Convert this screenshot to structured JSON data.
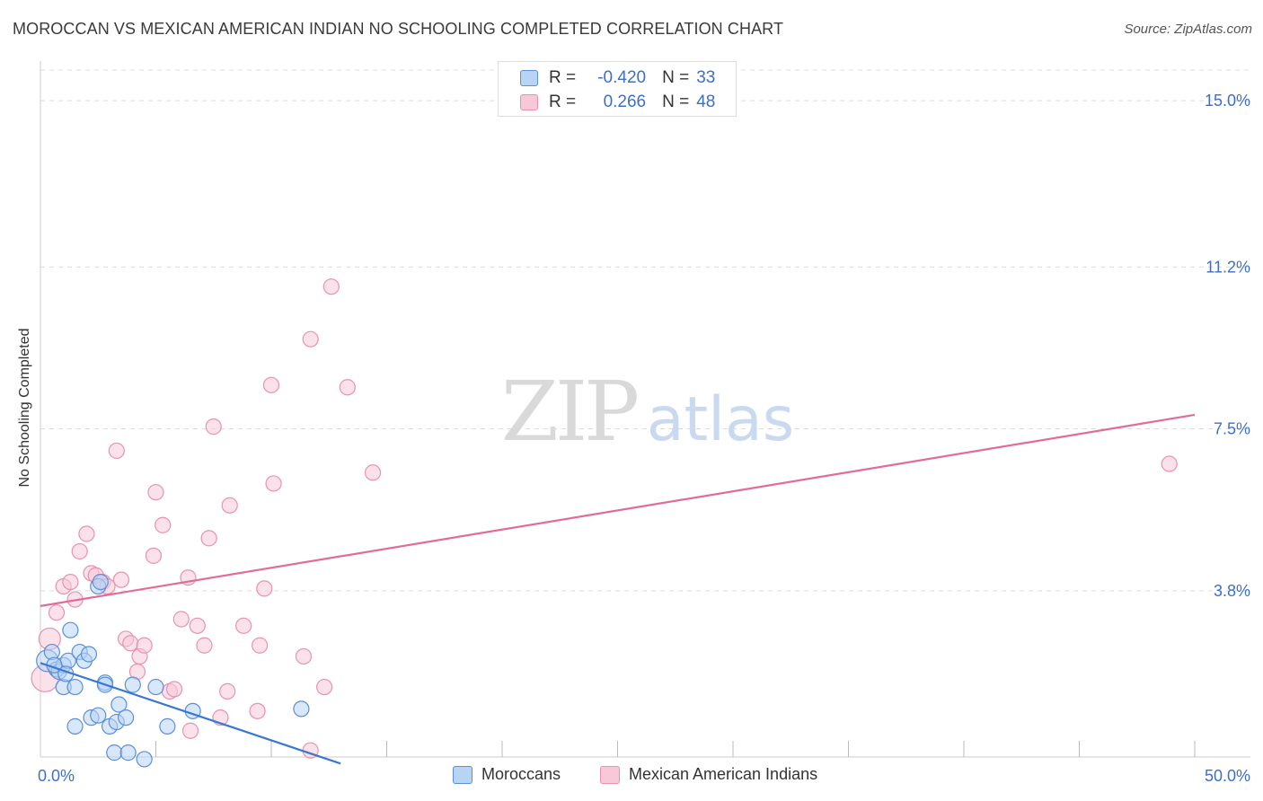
{
  "title": "MOROCCAN VS MEXICAN AMERICAN INDIAN NO SCHOOLING COMPLETED CORRELATION CHART",
  "source": "Source: ZipAtlas.com",
  "watermark": {
    "zip": "ZIP",
    "atlas": "atlas"
  },
  "legend": {
    "rows": [
      {
        "r_label": "R =",
        "r_value": "-0.420",
        "n_label": "N =",
        "n_value": "33"
      },
      {
        "r_label": "R =",
        "r_value": "0.266",
        "n_label": "N =",
        "n_value": "48"
      }
    ]
  },
  "colors": {
    "moroccan_fill": "#b8d4f5",
    "moroccan_stroke": "#5b8fd6",
    "moroccan_line": "#3a78d0",
    "mexican_fill": "#f8c8d8",
    "mexican_stroke": "#e892b0",
    "mexican_line": "#e06d99",
    "axis_text": "#3d6fc9",
    "grid": "#dcdcdc"
  },
  "chart_data": {
    "type": "scatter",
    "title": "MOROCCAN VS MEXICAN AMERICAN INDIAN NO SCHOOLING COMPLETED CORRELATION CHART",
    "xlabel": "",
    "ylabel": "No Schooling Completed",
    "xlim": [
      0,
      50
    ],
    "ylim": [
      0,
      15.7
    ],
    "x_tick_labels": [
      {
        "value": 0,
        "label": "0.0%"
      },
      {
        "value": 50,
        "label": "50.0%"
      }
    ],
    "x_minor_ticks": [
      5,
      10,
      15,
      20,
      25,
      30,
      35,
      40,
      45,
      50
    ],
    "y_ticks": [
      {
        "value": 3.8,
        "label": "3.8%"
      },
      {
        "value": 7.5,
        "label": "7.5%"
      },
      {
        "value": 11.2,
        "label": "11.2%"
      },
      {
        "value": 15.0,
        "label": "15.0%"
      }
    ],
    "grid": "horizontal",
    "series": [
      {
        "name": "Moroccans",
        "r": -0.42,
        "n": 33,
        "trend": {
          "x": [
            0,
            13
          ],
          "y": [
            2.15,
            -0.15
          ]
        },
        "points": [
          {
            "x": 0.3,
            "y": 2.2,
            "size": 12
          },
          {
            "x": 0.5,
            "y": 2.4
          },
          {
            "x": 0.7,
            "y": 2.0
          },
          {
            "x": 0.8,
            "y": 1.95
          },
          {
            "x": 1.0,
            "y": 2.1
          },
          {
            "x": 1.0,
            "y": 1.6
          },
          {
            "x": 1.2,
            "y": 2.2
          },
          {
            "x": 1.3,
            "y": 2.9
          },
          {
            "x": 1.5,
            "y": 0.7
          },
          {
            "x": 1.5,
            "y": 1.6
          },
          {
            "x": 1.7,
            "y": 2.4
          },
          {
            "x": 1.9,
            "y": 2.2
          },
          {
            "x": 2.1,
            "y": 2.35
          },
          {
            "x": 2.2,
            "y": 0.9
          },
          {
            "x": 2.5,
            "y": 0.95
          },
          {
            "x": 2.5,
            "y": 3.9
          },
          {
            "x": 2.6,
            "y": 4.0
          },
          {
            "x": 2.8,
            "y": 1.7
          },
          {
            "x": 2.8,
            "y": 1.65
          },
          {
            "x": 3.0,
            "y": 0.7
          },
          {
            "x": 3.2,
            "y": 0.1
          },
          {
            "x": 3.3,
            "y": 0.8
          },
          {
            "x": 3.4,
            "y": 1.2
          },
          {
            "x": 3.7,
            "y": 0.9
          },
          {
            "x": 3.8,
            "y": 0.1
          },
          {
            "x": 4.0,
            "y": 1.65
          },
          {
            "x": 4.5,
            "y": -0.05
          },
          {
            "x": 5.0,
            "y": 1.6
          },
          {
            "x": 5.5,
            "y": 0.7
          },
          {
            "x": 6.6,
            "y": 1.05
          },
          {
            "x": 11.3,
            "y": 1.1
          },
          {
            "x": 0.6,
            "y": 2.1
          },
          {
            "x": 1.1,
            "y": 1.9
          }
        ]
      },
      {
        "name": "Mexican American Indians",
        "r": 0.266,
        "n": 48,
        "trend": {
          "x": [
            0,
            50
          ],
          "y": [
            3.45,
            7.82
          ]
        },
        "points": [
          {
            "x": 0.2,
            "y": 1.8,
            "size": 15
          },
          {
            "x": 0.4,
            "y": 2.7,
            "size": 12
          },
          {
            "x": 0.7,
            "y": 3.3
          },
          {
            "x": 1.0,
            "y": 3.9
          },
          {
            "x": 1.3,
            "y": 4.0
          },
          {
            "x": 1.5,
            "y": 3.6
          },
          {
            "x": 1.7,
            "y": 4.7
          },
          {
            "x": 2.0,
            "y": 5.1
          },
          {
            "x": 2.2,
            "y": 4.2
          },
          {
            "x": 2.4,
            "y": 4.15
          },
          {
            "x": 2.7,
            "y": 4.0
          },
          {
            "x": 2.9,
            "y": 3.9
          },
          {
            "x": 3.3,
            "y": 7.0
          },
          {
            "x": 3.5,
            "y": 4.05
          },
          {
            "x": 3.7,
            "y": 2.7
          },
          {
            "x": 3.9,
            "y": 2.6
          },
          {
            "x": 4.2,
            "y": 1.95
          },
          {
            "x": 4.3,
            "y": 2.3
          },
          {
            "x": 4.5,
            "y": 2.55
          },
          {
            "x": 4.9,
            "y": 4.6
          },
          {
            "x": 5.0,
            "y": 6.05
          },
          {
            "x": 5.3,
            "y": 5.3
          },
          {
            "x": 5.6,
            "y": 1.5
          },
          {
            "x": 5.8,
            "y": 1.55
          },
          {
            "x": 6.1,
            "y": 3.15
          },
          {
            "x": 6.4,
            "y": 4.1
          },
          {
            "x": 6.5,
            "y": 0.6
          },
          {
            "x": 6.8,
            "y": 3.0
          },
          {
            "x": 7.1,
            "y": 2.55
          },
          {
            "x": 7.3,
            "y": 5.0
          },
          {
            "x": 7.5,
            "y": 7.55
          },
          {
            "x": 7.8,
            "y": 0.9
          },
          {
            "x": 8.1,
            "y": 1.5
          },
          {
            "x": 8.2,
            "y": 5.75
          },
          {
            "x": 8.8,
            "y": 3.0
          },
          {
            "x": 9.4,
            "y": 1.05
          },
          {
            "x": 9.5,
            "y": 2.55
          },
          {
            "x": 9.7,
            "y": 3.85
          },
          {
            "x": 10.0,
            "y": 8.5
          },
          {
            "x": 10.1,
            "y": 6.25
          },
          {
            "x": 11.4,
            "y": 2.3
          },
          {
            "x": 11.7,
            "y": 9.55
          },
          {
            "x": 11.7,
            "y": 0.15
          },
          {
            "x": 12.3,
            "y": 1.6
          },
          {
            "x": 12.6,
            "y": 10.75
          },
          {
            "x": 13.3,
            "y": 8.45
          },
          {
            "x": 14.4,
            "y": 6.5
          },
          {
            "x": 48.9,
            "y": 6.7
          }
        ]
      }
    ]
  }
}
